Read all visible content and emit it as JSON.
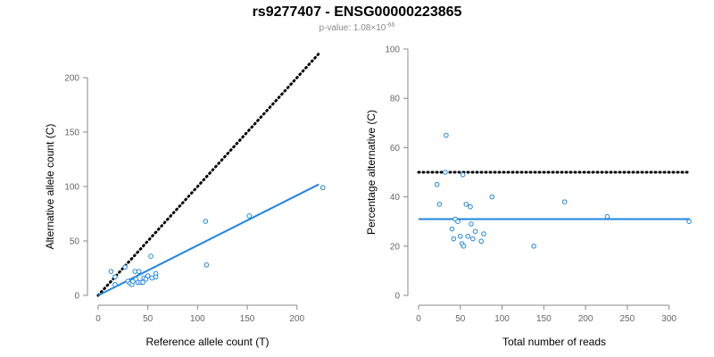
{
  "title": "rs9277407 - ENSG00000223865",
  "subtitle": {
    "prefix": "p-value: 1.08×10",
    "exponent": "-66"
  },
  "colors": {
    "fit": "#1f86e0",
    "points": "#1f86e0",
    "reference": "#000000"
  },
  "chart_data": [
    {
      "type": "scatter",
      "name": "counts",
      "xlabel": "Reference allele count (T)",
      "ylabel": "Alternative allele count (C)",
      "xlim": [
        0,
        220
      ],
      "ylim": [
        0,
        200
      ],
      "xticks": [
        0,
        50,
        100,
        150,
        200
      ],
      "yticks": [
        0,
        50,
        100,
        150,
        200
      ],
      "points": [
        {
          "x": 13,
          "y": 22
        },
        {
          "x": 17,
          "y": 17
        },
        {
          "x": 17,
          "y": 10
        },
        {
          "x": 27,
          "y": 26
        },
        {
          "x": 30,
          "y": 13
        },
        {
          "x": 32,
          "y": 11
        },
        {
          "x": 34,
          "y": 10
        },
        {
          "x": 35,
          "y": 13
        },
        {
          "x": 37,
          "y": 22
        },
        {
          "x": 38,
          "y": 15
        },
        {
          "x": 40,
          "y": 12
        },
        {
          "x": 41,
          "y": 22
        },
        {
          "x": 43,
          "y": 12
        },
        {
          "x": 45,
          "y": 12
        },
        {
          "x": 46,
          "y": 16
        },
        {
          "x": 48,
          "y": 15
        },
        {
          "x": 50,
          "y": 18
        },
        {
          "x": 53,
          "y": 36
        },
        {
          "x": 54,
          "y": 16
        },
        {
          "x": 58,
          "y": 20
        },
        {
          "x": 58,
          "y": 17
        },
        {
          "x": 108,
          "y": 68
        },
        {
          "x": 109,
          "y": 28
        },
        {
          "x": 152,
          "y": 73
        },
        {
          "x": 226,
          "y": 99
        }
      ],
      "fit_line": {
        "x": [
          0,
          222
        ],
        "y": [
          0,
          102
        ]
      },
      "reference_line": {
        "x": [
          0,
          222
        ],
        "y": [
          0,
          222
        ],
        "style": "dotted"
      }
    },
    {
      "type": "scatter",
      "name": "percentage",
      "xlabel": "Total number of reads",
      "ylabel": "Percentage alternative (C)",
      "xlim": [
        0,
        325
      ],
      "ylim": [
        0,
        100
      ],
      "xticks": [
        0,
        50,
        100,
        150,
        200,
        250,
        300
      ],
      "yticks": [
        0,
        20,
        40,
        60,
        80,
        100
      ],
      "points": [
        {
          "x": 22,
          "y": 45
        },
        {
          "x": 25,
          "y": 37
        },
        {
          "x": 32,
          "y": 50
        },
        {
          "x": 33,
          "y": 65
        },
        {
          "x": 40,
          "y": 27
        },
        {
          "x": 42,
          "y": 23
        },
        {
          "x": 44,
          "y": 31
        },
        {
          "x": 47,
          "y": 30
        },
        {
          "x": 50,
          "y": 24
        },
        {
          "x": 52,
          "y": 21
        },
        {
          "x": 53,
          "y": 49
        },
        {
          "x": 54,
          "y": 20
        },
        {
          "x": 57,
          "y": 37
        },
        {
          "x": 59,
          "y": 24
        },
        {
          "x": 62,
          "y": 36
        },
        {
          "x": 63,
          "y": 29
        },
        {
          "x": 65,
          "y": 23
        },
        {
          "x": 68,
          "y": 26
        },
        {
          "x": 75,
          "y": 22
        },
        {
          "x": 78,
          "y": 25
        },
        {
          "x": 88,
          "y": 40
        },
        {
          "x": 138,
          "y": 20
        },
        {
          "x": 175,
          "y": 38
        },
        {
          "x": 226,
          "y": 32
        },
        {
          "x": 324,
          "y": 30
        }
      ],
      "fit_line": {
        "x": [
          0,
          325
        ],
        "y": [
          31,
          31
        ]
      },
      "reference_line": {
        "x": [
          0,
          325
        ],
        "y": [
          50,
          50
        ],
        "style": "dotted"
      }
    }
  ]
}
